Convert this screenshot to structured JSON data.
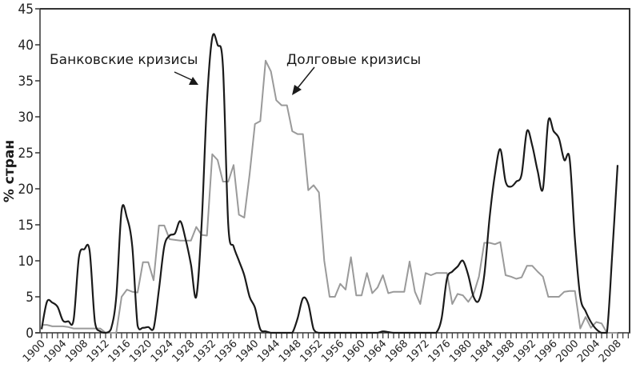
{
  "chart_data": {
    "type": "line",
    "title": "",
    "xlabel": "",
    "ylabel": "% стран",
    "ylim": [
      0,
      45
    ],
    "xlim": [
      1900,
      2010
    ],
    "yticks": [
      0,
      5,
      10,
      15,
      20,
      25,
      30,
      35,
      40,
      45
    ],
    "xticks": [
      1900,
      1904,
      1908,
      1912,
      1916,
      1920,
      1924,
      1928,
      1932,
      1936,
      1940,
      1944,
      1948,
      1952,
      1956,
      1960,
      1964,
      1968,
      1972,
      1976,
      1980,
      1984,
      1988,
      1992,
      1996,
      2000,
      2004,
      2008
    ],
    "grid": false,
    "annotations": [
      {
        "text": "Банковские кризисы",
        "target_series": "Банковские кризисы"
      },
      {
        "text": "Долговые кризисы",
        "target_series": "Долговые кризисы"
      }
    ],
    "series": [
      {
        "name": "Банковские кризисы",
        "color": "#1a1a1a",
        "x": [
          1900,
          1901,
          1902,
          1903,
          1904,
          1905,
          1906,
          1907,
          1908,
          1909,
          1910,
          1911,
          1912,
          1913,
          1914,
          1915,
          1916,
          1917,
          1918,
          1919,
          1920,
          1921,
          1922,
          1923,
          1924,
          1925,
          1926,
          1927,
          1928,
          1929,
          1930,
          1931,
          1932,
          1933,
          1934,
          1935,
          1936,
          1937,
          1938,
          1939,
          1940,
          1941,
          1942,
          1943,
          1944,
          1945,
          1946,
          1947,
          1948,
          1949,
          1950,
          1951,
          1952,
          1953,
          1954,
          1955,
          1956,
          1957,
          1958,
          1959,
          1960,
          1961,
          1962,
          1963,
          1964,
          1965,
          1966,
          1967,
          1968,
          1969,
          1970,
          1971,
          1972,
          1973,
          1974,
          1975,
          1976,
          1977,
          1978,
          1979,
          1980,
          1981,
          1982,
          1983,
          1984,
          1985,
          1986,
          1987,
          1988,
          1989,
          1990,
          1991,
          1992,
          1993,
          1994,
          1995,
          1996,
          1997,
          1998,
          1999,
          2000,
          2001,
          2002,
          2003,
          2004,
          2005,
          2006,
          2007,
          2008
        ],
        "values": [
          0.5,
          4.3,
          4.2,
          3.6,
          1.7,
          1.6,
          1.8,
          10.5,
          11.6,
          11.4,
          1.5,
          0.2,
          0,
          0.5,
          5,
          17,
          16,
          12,
          1,
          0.7,
          0.8,
          0.6,
          6,
          12,
          13.5,
          13.8,
          15.5,
          13,
          9.5,
          5,
          15,
          32,
          41,
          40,
          37,
          15,
          12,
          10,
          8,
          5,
          3.5,
          0.5,
          0.2,
          0,
          0,
          0,
          0,
          0,
          2,
          4.8,
          4,
          0.5,
          0,
          0,
          0,
          0,
          0,
          0,
          0,
          0,
          0,
          0,
          0,
          0,
          0.2,
          0.1,
          0,
          0,
          0,
          0,
          0,
          0,
          0,
          0,
          0,
          2,
          7.5,
          8.5,
          9.2,
          10,
          8,
          5,
          4.5,
          8,
          16,
          22,
          25.5,
          21,
          20.3,
          21,
          22,
          28,
          26,
          22.5,
          20,
          29.4,
          28,
          27,
          24,
          24.2,
          13,
          5,
          3,
          1.5,
          0.5,
          0,
          0,
          11,
          23.3
        ]
      },
      {
        "name": "Долговые кризисы",
        "color": "#9a9a9a",
        "x": [
          1900,
          1901,
          1902,
          1903,
          1904,
          1905,
          1906,
          1907,
          1908,
          1909,
          1910,
          1911,
          1912,
          1913,
          1914,
          1915,
          1916,
          1917,
          1918,
          1919,
          1920,
          1921,
          1922,
          1923,
          1924,
          1925,
          1926,
          1927,
          1928,
          1929,
          1930,
          1931,
          1932,
          1933,
          1934,
          1935,
          1936,
          1937,
          1938,
          1939,
          1940,
          1941,
          1942,
          1943,
          1944,
          1945,
          1946,
          1947,
          1948,
          1949,
          1950,
          1951,
          1952,
          1953,
          1954,
          1955,
          1956,
          1957,
          1958,
          1959,
          1960,
          1961,
          1962,
          1963,
          1964,
          1965,
          1966,
          1967,
          1968,
          1969,
          1970,
          1971,
          1972,
          1973,
          1974,
          1975,
          1976,
          1977,
          1978,
          1979,
          1980,
          1981,
          1982,
          1983,
          1984,
          1985,
          1986,
          1987,
          1988,
          1989,
          1990,
          1991,
          1992,
          1993,
          1994,
          1995,
          1996,
          1997,
          1998,
          1999,
          2000,
          2001,
          2002,
          2003,
          2004,
          2005,
          2006,
          2007,
          2008
        ],
        "values": [
          1.1,
          1.1,
          0.9,
          0.9,
          0.9,
          0.8,
          0.6,
          0.6,
          0.6,
          0.6,
          0.6,
          0.6,
          0,
          0,
          0,
          5,
          6,
          5.7,
          5.6,
          9.8,
          9.8,
          7.3,
          14.9,
          14.9,
          13,
          12.9,
          12.8,
          12.8,
          12.8,
          14.7,
          13.6,
          13.5,
          24.8,
          24,
          21,
          21,
          23.3,
          16.4,
          16,
          22,
          29,
          29.4,
          37.8,
          36.3,
          32.3,
          31.6,
          31.6,
          28,
          27.6,
          27.6,
          19.8,
          20.5,
          19.5,
          10,
          5,
          5,
          6.8,
          6,
          10.5,
          5.2,
          5.2,
          8.3,
          5.5,
          6.3,
          8,
          5.5,
          5.7,
          5.7,
          5.7,
          9.9,
          5.7,
          4,
          8.3,
          8,
          8.3,
          8.3,
          8.3,
          4,
          5.4,
          5.2,
          4.3,
          5.4,
          7.8,
          12.5,
          12.5,
          12.3,
          12.6,
          8,
          7.8,
          7.5,
          7.7,
          9.3,
          9.3,
          8.5,
          7.8,
          5,
          5,
          5,
          5.7,
          5.8,
          5.8,
          0.6,
          2.2,
          0.7,
          1.5,
          1.3,
          0,
          0,
          0
        ]
      }
    ]
  }
}
